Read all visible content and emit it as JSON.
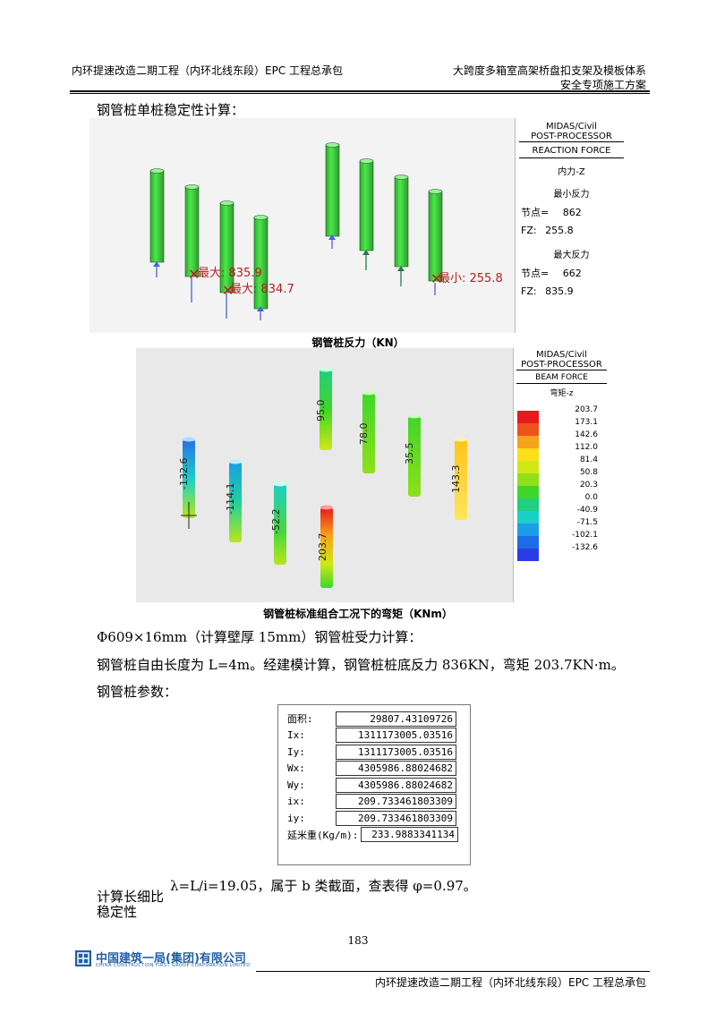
{
  "header": {
    "left": "内环提速改造二期工程（内环北线东段）EPC 工程总承包",
    "right_line1": "大跨度多箱室高架桥盘扣支架及模板体系",
    "right_line2": "安全专项施工方案"
  },
  "section_title": "钢管桩单桩稳定性计算：",
  "figure1": {
    "panel": {
      "brand": "MIDAS/Civil",
      "sub": "POST-PROCESSOR",
      "type": "REACTION FORCE",
      "component": "内力-Z",
      "min_label": "最小反力",
      "min_node_label": "节点=",
      "min_node": "862",
      "min_fz_label": "FZ:",
      "min_fz": "255.8",
      "max_label": "最大反力",
      "max_node_label": "节点=",
      "max_node": "662",
      "max_fz_label": "FZ:",
      "max_fz": "835.9"
    },
    "labels": {
      "max1": "最大: 835.9",
      "max2": "最大: 834.7",
      "min1": "最小: 255.8"
    },
    "caption": "钢管桩反力（KN）"
  },
  "figure2": {
    "panel": {
      "brand": "MIDAS/Civil",
      "sub": "POST-PROCESSOR",
      "type": "BEAM FORCE",
      "component": "弯矩-z",
      "legend": [
        "203.7",
        "173.1",
        "142.6",
        "112.0",
        "81.4",
        "50.8",
        "20.3",
        "0.0",
        "-40.9",
        "-71.5",
        "-102.1",
        "-132.6"
      ],
      "legend_colors": [
        "#e8191c",
        "#f0521c",
        "#f7a21b",
        "#ffde1a",
        "#cfe816",
        "#8fe01a",
        "#3fd62a",
        "#20cf7f",
        "#1ccfc8",
        "#1a9ee6",
        "#1a6ce8",
        "#2a3ee6"
      ]
    },
    "pile_labels": [
      "-132.6",
      "-114.1",
      "-52.2",
      "203.7",
      "95.0",
      "78.0",
      "35.5",
      "143.3"
    ],
    "caption": "钢管桩标准组合工况下的弯矩（KNm）"
  },
  "para1": "Φ609×16mm（计算壁厚 15mm）钢管桩受力计算：",
  "para2": "钢管桩自由长度为 L=4m。经建模计算，钢管桩桩底反力 836KN，弯矩 203.7KN·m。",
  "para3": "钢管桩参数：",
  "params": [
    {
      "label": "面积:",
      "value": "29807.43109726"
    },
    {
      "label": "Ix:",
      "value": "1311173005.03516"
    },
    {
      "label": "Iy:",
      "value": "1311173005.03516"
    },
    {
      "label": "Wx:",
      "value": "4305986.88024682"
    },
    {
      "label": "Wy:",
      "value": "4305986.88024682"
    },
    {
      "label": "ix:",
      "value": "209.733461803309"
    },
    {
      "label": "iy:",
      "value": "209.733461803309"
    },
    {
      "label": "延米重(Kg/m):",
      "value": "233.9883341134"
    }
  ],
  "slender_label": "计算长细比",
  "slender_text": "λ=L/i=19.05，属于 b 类截面，查表得 φ=0.97。",
  "stability_label": "稳定性",
  "page_number": "183",
  "footer": {
    "company": "中国建筑一局(集团)有限公司",
    "company_en": "CHINA CONSTRUCTION FIRST GROUP CORPORATION LIMITED",
    "right": "内环提速改造二期工程（内环北线东段）EPC 工程总承包"
  }
}
